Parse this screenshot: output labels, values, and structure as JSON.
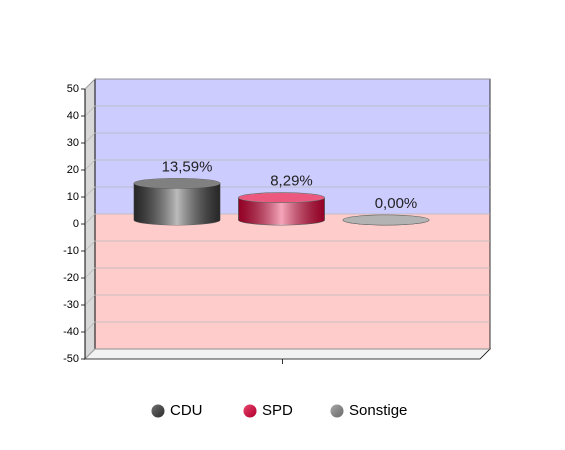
{
  "chart_data": {
    "type": "bar",
    "categories": [
      "CDU",
      "SPD",
      "Sonstige"
    ],
    "values": [
      13.59,
      8.29,
      0
    ],
    "value_labels": [
      "13,59%",
      "8,29%",
      "0,00%"
    ],
    "colors": [
      "#3c3c3c",
      "#e4003a",
      "#8a8a8a"
    ],
    "ylim": [
      -50,
      50
    ],
    "yticks": [
      -50,
      -40,
      -30,
      -20,
      -10,
      0,
      10,
      20,
      30,
      40,
      50
    ],
    "grid": true,
    "legend": "bottom"
  }
}
